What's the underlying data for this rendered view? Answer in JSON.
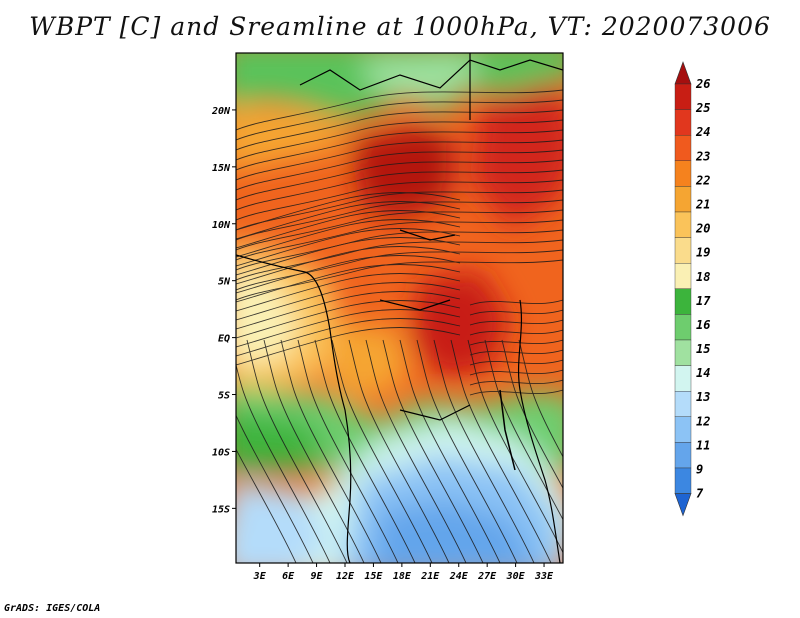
{
  "title": "WBPT [C] and Sreamline at 1000hPa, VT: 2020073006",
  "credit": "GrADS: IGES/COLA",
  "map": {
    "lat_labels": [
      "20N",
      "15N",
      "10N",
      "5N",
      "EQ",
      "5S",
      "10S",
      "15S"
    ],
    "lat_values": [
      20,
      15,
      10,
      5,
      0,
      -5,
      -10,
      -15
    ],
    "lon_labels": [
      "3E",
      "6E",
      "9E",
      "12E",
      "15E",
      "18E",
      "21E",
      "24E",
      "27E",
      "30E",
      "33E"
    ],
    "lon_values": [
      3,
      6,
      9,
      12,
      15,
      18,
      21,
      24,
      27,
      30,
      33
    ],
    "lon_range": [
      0.5,
      35
    ],
    "lat_range": [
      -19.8,
      25
    ]
  },
  "colorbar": {
    "labels": [
      "26",
      "25",
      "24",
      "23",
      "22",
      "21",
      "20",
      "19",
      "18",
      "17",
      "16",
      "15",
      "14",
      "13",
      "12",
      "11",
      "9",
      "7"
    ],
    "colors": [
      "#a50f0f",
      "#c81e14",
      "#e1371e",
      "#f05a1e",
      "#f5821e",
      "#f5a532",
      "#fac35a",
      "#fadc8c",
      "#faf0b4",
      "#3cb43c",
      "#6ecd6e",
      "#a0e1a0",
      "#d2f5f0",
      "#b4dcfa",
      "#8cc3f5",
      "#64a5eb",
      "#3c87e1",
      "#1e64d2"
    ]
  }
}
